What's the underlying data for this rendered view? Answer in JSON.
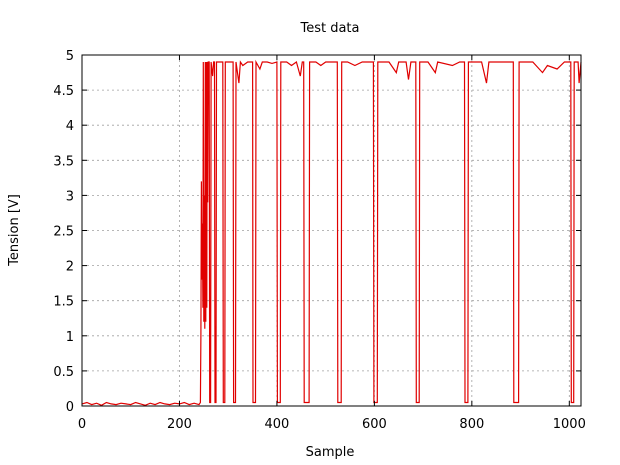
{
  "chart_data": {
    "type": "line",
    "title": "Test data",
    "xlabel": "Sample",
    "ylabel": "Tension [V]",
    "xlim": [
      0,
      1024
    ],
    "ylim": [
      0,
      5
    ],
    "xticks": [
      0,
      200,
      400,
      600,
      800,
      1000
    ],
    "yticks": [
      0,
      0.5,
      1,
      1.5,
      2,
      2.5,
      3,
      3.5,
      4,
      4.5,
      5
    ],
    "grid": true,
    "series": [
      {
        "color": "#e00000",
        "points": [
          [
            0,
            0.03
          ],
          [
            10,
            0.05
          ],
          [
            20,
            0.02
          ],
          [
            30,
            0.04
          ],
          [
            40,
            0.01
          ],
          [
            50,
            0.05
          ],
          [
            60,
            0.03
          ],
          [
            70,
            0.02
          ],
          [
            80,
            0.04
          ],
          [
            90,
            0.03
          ],
          [
            100,
            0.02
          ],
          [
            110,
            0.05
          ],
          [
            120,
            0.03
          ],
          [
            130,
            0.01
          ],
          [
            140,
            0.04
          ],
          [
            150,
            0.02
          ],
          [
            160,
            0.05
          ],
          [
            170,
            0.03
          ],
          [
            180,
            0.02
          ],
          [
            190,
            0.04
          ],
          [
            200,
            0.03
          ],
          [
            210,
            0.05
          ],
          [
            220,
            0.02
          ],
          [
            230,
            0.04
          ],
          [
            240,
            0.02
          ],
          [
            243,
            0.05
          ],
          [
            244,
            1.0
          ],
          [
            245,
            3.2
          ],
          [
            246,
            1.8
          ],
          [
            247,
            2.6
          ],
          [
            248,
            1.4
          ],
          [
            249,
            4.9
          ],
          [
            250,
            1.2
          ],
          [
            251,
            3.0
          ],
          [
            252,
            1.1
          ],
          [
            253,
            4.9
          ],
          [
            254,
            1.2
          ],
          [
            255,
            4.9
          ],
          [
            256,
            1.4
          ],
          [
            257,
            4.9
          ],
          [
            258,
            2.9
          ],
          [
            259,
            4.9
          ],
          [
            261,
            4.9
          ],
          [
            262,
            0.05
          ],
          [
            264,
            0.05
          ],
          [
            265,
            4.9
          ],
          [
            268,
            4.7
          ],
          [
            270,
            4.9
          ],
          [
            272,
            4.9
          ],
          [
            273,
            0.05
          ],
          [
            275,
            0.05
          ],
          [
            276,
            4.9
          ],
          [
            285,
            4.9
          ],
          [
            289,
            4.9
          ],
          [
            290,
            0.05
          ],
          [
            293,
            0.05
          ],
          [
            294,
            4.9
          ],
          [
            300,
            4.9
          ],
          [
            310,
            4.9
          ],
          [
            311,
            0.05
          ],
          [
            315,
            0.05
          ],
          [
            316,
            4.9
          ],
          [
            322,
            4.6
          ],
          [
            325,
            4.9
          ],
          [
            330,
            4.85
          ],
          [
            340,
            4.9
          ],
          [
            350,
            4.9
          ],
          [
            351,
            0.05
          ],
          [
            356,
            0.05
          ],
          [
            357,
            4.9
          ],
          [
            365,
            4.8
          ],
          [
            370,
            4.9
          ],
          [
            380,
            4.9
          ],
          [
            390,
            4.88
          ],
          [
            400,
            4.9
          ],
          [
            401,
            0.05
          ],
          [
            407,
            0.05
          ],
          [
            408,
            4.9
          ],
          [
            420,
            4.9
          ],
          [
            430,
            4.85
          ],
          [
            440,
            4.9
          ],
          [
            448,
            4.7
          ],
          [
            452,
            4.9
          ],
          [
            455,
            4.9
          ],
          [
            456,
            0.05
          ],
          [
            466,
            0.05
          ],
          [
            467,
            4.9
          ],
          [
            480,
            4.9
          ],
          [
            490,
            4.85
          ],
          [
            500,
            4.9
          ],
          [
            510,
            4.9
          ],
          [
            520,
            4.9
          ],
          [
            524,
            4.9
          ],
          [
            525,
            0.05
          ],
          [
            532,
            0.05
          ],
          [
            533,
            4.9
          ],
          [
            545,
            4.9
          ],
          [
            560,
            4.85
          ],
          [
            575,
            4.9
          ],
          [
            590,
            4.9
          ],
          [
            598,
            4.9
          ],
          [
            599,
            0.05
          ],
          [
            606,
            0.05
          ],
          [
            607,
            4.9
          ],
          [
            630,
            4.9
          ],
          [
            645,
            4.75
          ],
          [
            650,
            4.9
          ],
          [
            665,
            4.9
          ],
          [
            670,
            4.65
          ],
          [
            675,
            4.9
          ],
          [
            685,
            4.9
          ],
          [
            686,
            0.05
          ],
          [
            692,
            0.05
          ],
          [
            693,
            4.9
          ],
          [
            710,
            4.9
          ],
          [
            725,
            4.75
          ],
          [
            730,
            4.9
          ],
          [
            760,
            4.85
          ],
          [
            775,
            4.9
          ],
          [
            785,
            4.9
          ],
          [
            786,
            0.05
          ],
          [
            792,
            0.05
          ],
          [
            793,
            4.9
          ],
          [
            820,
            4.9
          ],
          [
            830,
            4.6
          ],
          [
            835,
            4.9
          ],
          [
            860,
            4.9
          ],
          [
            885,
            4.9
          ],
          [
            886,
            0.05
          ],
          [
            896,
            0.05
          ],
          [
            897,
            4.9
          ],
          [
            925,
            4.9
          ],
          [
            945,
            4.75
          ],
          [
            955,
            4.85
          ],
          [
            975,
            4.8
          ],
          [
            990,
            4.9
          ],
          [
            1003,
            4.9
          ],
          [
            1004,
            0.05
          ],
          [
            1009,
            0.05
          ],
          [
            1010,
            4.9
          ],
          [
            1018,
            4.9
          ],
          [
            1020,
            4.6
          ],
          [
            1024,
            4.9
          ]
        ]
      }
    ]
  }
}
